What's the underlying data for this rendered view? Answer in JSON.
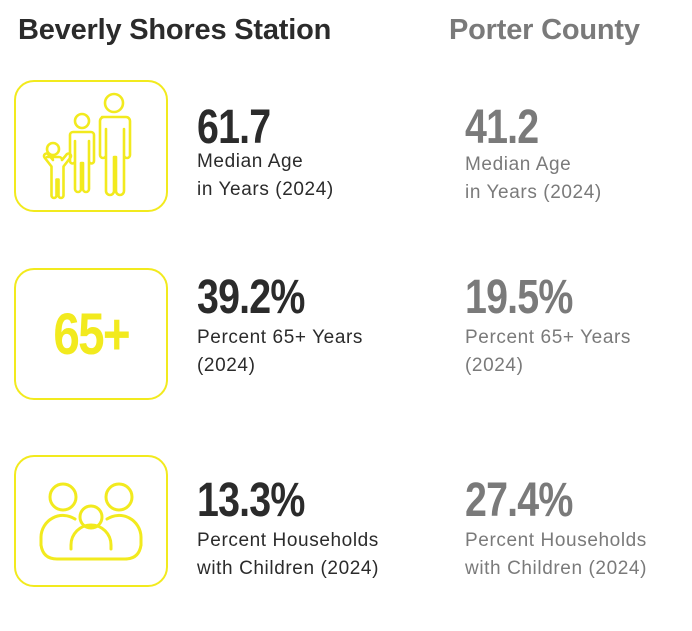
{
  "headers": {
    "left": "Beverly Shores Station",
    "right": "Porter County"
  },
  "rows": [
    {
      "icon": "family-icon",
      "local": {
        "value": "61.7",
        "label_line1": "Median Age",
        "label_line2": "in Years (2024)"
      },
      "county": {
        "value": "41.2",
        "label_line1": "Median Age",
        "label_line2": "in Years (2024)"
      }
    },
    {
      "icon": "sixty-five-plus-icon",
      "icon_text": "65+",
      "local": {
        "value": "39.2%",
        "label_line1": "Percent 65+ Years",
        "label_line2": "(2024)"
      },
      "county": {
        "value": "19.5%",
        "label_line1": "Percent 65+ Years",
        "label_line2": "(2024)"
      }
    },
    {
      "icon": "household-icon",
      "local": {
        "value": "13.3%",
        "label_line1": "Percent Households",
        "label_line2": "with Children (2024)"
      },
      "county": {
        "value": "27.4%",
        "label_line1": "Percent Households",
        "label_line2": "with Children (2024)"
      }
    }
  ],
  "colors": {
    "accent": "#f2ea1e",
    "dark_text": "#2b2b2b",
    "gray_text": "#7a7a7a"
  }
}
